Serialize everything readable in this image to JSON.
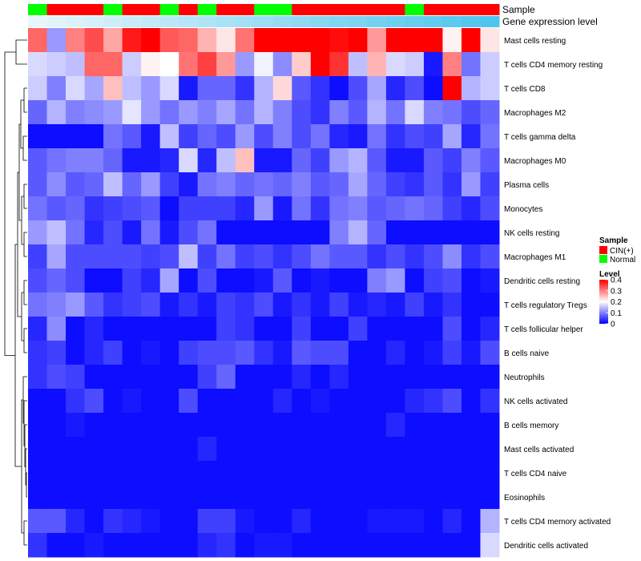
{
  "chart_data": {
    "type": "heatmap",
    "title": "",
    "annotation_tracks": [
      {
        "label": "Sample",
        "values": [
          "Normal",
          "CIN(+)",
          "CIN(+)",
          "CIN(+)",
          "Normal",
          "CIN(+)",
          "CIN(+)",
          "Normal",
          "CIN(+)",
          "Normal",
          "CIN(+)",
          "CIN(+)",
          "Normal",
          "Normal",
          "CIN(+)",
          "CIN(+)",
          "CIN(+)",
          "CIN(+)",
          "CIN(+)",
          "CIN(+)",
          "Normal",
          "CIN(+)",
          "CIN(+)",
          "CIN(+)",
          "CIN(+)"
        ]
      },
      {
        "label": "Gene expression level",
        "values": [
          0.14,
          0.15,
          0.16,
          0.17,
          0.18,
          0.19,
          0.2,
          0.21,
          0.22,
          0.23,
          0.24,
          0.25,
          0.26,
          0.27,
          0.28,
          0.29,
          0.3,
          0.31,
          0.32,
          0.33,
          0.34,
          0.35,
          0.36,
          0.37,
          0.38
        ]
      }
    ],
    "rows": [
      "Mast cells resting",
      "T cells CD4 memory resting",
      "T cells CD8",
      "Macrophages M2",
      "T cells gamma delta",
      "Macrophages M0",
      "Plasma cells",
      "Monocytes",
      "NK cells resting",
      "Macrophages M1",
      "Dendritic cells resting",
      "T cells regulatory  Tregs",
      "T cells follicular helper",
      "B cells naive",
      "Neutrophils",
      "NK cells activated",
      "B cells memory",
      "Mast cells activated",
      "T cells CD4 naive",
      "Eosinophils",
      "T cells CD4 memory activated",
      "Dendritic cells activated"
    ],
    "values": [
      [
        0.32,
        0.12,
        0.3,
        0.34,
        0.27,
        0.38,
        0.4,
        0.33,
        0.32,
        0.26,
        0.22,
        0.31,
        0.4,
        0.4,
        0.4,
        0.4,
        0.39,
        0.4,
        0.28,
        0.4,
        0.4,
        0.4,
        0.21,
        0.4,
        0.22
      ],
      [
        0.17,
        0.16,
        0.15,
        0.32,
        0.32,
        0.16,
        0.21,
        0.2,
        0.31,
        0.35,
        0.28,
        0.12,
        0.19,
        0.11,
        0.24,
        0.4,
        0.36,
        0.15,
        0.26,
        0.17,
        0.16,
        0.02,
        0.3,
        0.09,
        0.16
      ],
      [
        0.16,
        0.1,
        0.17,
        0.13,
        0.25,
        0.15,
        0.12,
        0.17,
        0.02,
        0.08,
        0.08,
        0.04,
        0.14,
        0.23,
        0.07,
        0.04,
        0.01,
        0.06,
        0.13,
        0.03,
        0.06,
        0.01,
        0.4,
        0.14,
        0.16
      ],
      [
        0.08,
        0.14,
        0.1,
        0.11,
        0.12,
        0.18,
        0.12,
        0.09,
        0.12,
        0.1,
        0.13,
        0.09,
        0.14,
        0.1,
        0.06,
        0.04,
        0.1,
        0.07,
        0.14,
        0.09,
        0.17,
        0.1,
        0.09,
        0.06,
        0.08
      ],
      [
        0.01,
        0.01,
        0.01,
        0.01,
        0.09,
        0.07,
        0.02,
        0.15,
        0.05,
        0.08,
        0.06,
        0.12,
        0.06,
        0.1,
        0.06,
        0.09,
        0.03,
        0.02,
        0.09,
        0.04,
        0.06,
        0.05,
        0.13,
        0.03,
        0.09
      ],
      [
        0.07,
        0.09,
        0.1,
        0.1,
        0.08,
        0.02,
        0.02,
        0.03,
        0.17,
        0.03,
        0.15,
        0.25,
        0.02,
        0.02,
        0.08,
        0.05,
        0.12,
        0.14,
        0.07,
        0.02,
        0.02,
        0.07,
        0.05,
        0.1,
        0.07
      ],
      [
        0.07,
        0.11,
        0.07,
        0.08,
        0.15,
        0.08,
        0.12,
        0.05,
        0.02,
        0.09,
        0.1,
        0.08,
        0.09,
        0.08,
        0.1,
        0.07,
        0.08,
        0.13,
        0.08,
        0.05,
        0.04,
        0.07,
        0.04,
        0.12,
        0.05
      ],
      [
        0.09,
        0.07,
        0.08,
        0.04,
        0.05,
        0.06,
        0.07,
        0.01,
        0.05,
        0.05,
        0.05,
        0.03,
        0.12,
        0.02,
        0.09,
        0.04,
        0.09,
        0.1,
        0.07,
        0.08,
        0.09,
        0.08,
        0.05,
        0.03,
        0.06
      ],
      [
        0.12,
        0.15,
        0.09,
        0.03,
        0.06,
        0.02,
        0.09,
        0.02,
        0.06,
        0.09,
        0.01,
        0.01,
        0.01,
        0.01,
        0.01,
        0.01,
        0.1,
        0.14,
        0.08,
        0.01,
        0.01,
        0.01,
        0.01,
        0.01,
        0.01
      ],
      [
        0.05,
        0.13,
        0.06,
        0.06,
        0.06,
        0.06,
        0.05,
        0.06,
        0.15,
        0.05,
        0.09,
        0.05,
        0.06,
        0.04,
        0.06,
        0.09,
        0.07,
        0.07,
        0.04,
        0.06,
        0.04,
        0.06,
        0.11,
        0.04,
        0.06
      ],
      [
        0.06,
        0.08,
        0.06,
        0.01,
        0.01,
        0.05,
        0.03,
        0.13,
        0.01,
        0.06,
        0.01,
        0.01,
        0.02,
        0.07,
        0.01,
        0.02,
        0.01,
        0.01,
        0.1,
        0.12,
        0.01,
        0.05,
        0.06,
        0.01,
        0.02
      ],
      [
        0.09,
        0.1,
        0.12,
        0.07,
        0.04,
        0.05,
        0.06,
        0.02,
        0.04,
        0.02,
        0.05,
        0.04,
        0.06,
        0.02,
        0.04,
        0.02,
        0.05,
        0.02,
        0.03,
        0.02,
        0.05,
        0.02,
        0.04,
        0.01,
        0.01
      ],
      [
        0.03,
        0.11,
        0.01,
        0.03,
        0.01,
        0.01,
        0.01,
        0.01,
        0.01,
        0.01,
        0.05,
        0.04,
        0.01,
        0.01,
        0.05,
        0.01,
        0.01,
        0.05,
        0.01,
        0.01,
        0.01,
        0.01,
        0.06,
        0.01,
        0.03
      ],
      [
        0.04,
        0.05,
        0.01,
        0.03,
        0.05,
        0.01,
        0.02,
        0.01,
        0.05,
        0.06,
        0.06,
        0.07,
        0.04,
        0.02,
        0.07,
        0.06,
        0.06,
        0.01,
        0.01,
        0.03,
        0.01,
        0.02,
        0.05,
        0.02,
        0.06
      ],
      [
        0.04,
        0.06,
        0.05,
        0.01,
        0.01,
        0.01,
        0.01,
        0.01,
        0.01,
        0.05,
        0.08,
        0.01,
        0.01,
        0.01,
        0.03,
        0.01,
        0.03,
        0.01,
        0.01,
        0.01,
        0.01,
        0.01,
        0.01,
        0.01,
        0.01
      ],
      [
        0.01,
        0.01,
        0.04,
        0.06,
        0.01,
        0.02,
        0.01,
        0.01,
        0.06,
        0.01,
        0.01,
        0.01,
        0.01,
        0.03,
        0.01,
        0.02,
        0.01,
        0.01,
        0.01,
        0.01,
        0.03,
        0.04,
        0.06,
        0.01,
        0.04
      ],
      [
        0.01,
        0.01,
        0.02,
        0.01,
        0.01,
        0.01,
        0.01,
        0.01,
        0.01,
        0.01,
        0.01,
        0.01,
        0.01,
        0.01,
        0.01,
        0.01,
        0.01,
        0.01,
        0.01,
        0.03,
        0.01,
        0.01,
        0.01,
        0.01,
        0.01
      ],
      [
        0.01,
        0.01,
        0.01,
        0.01,
        0.01,
        0.01,
        0.01,
        0.01,
        0.01,
        0.03,
        0.01,
        0.01,
        0.01,
        0.01,
        0.01,
        0.01,
        0.01,
        0.01,
        0.01,
        0.01,
        0.01,
        0.01,
        0.01,
        0.01,
        0.01
      ],
      [
        0.01,
        0.01,
        0.01,
        0.01,
        0.01,
        0.01,
        0.01,
        0.01,
        0.01,
        0.01,
        0.01,
        0.01,
        0.01,
        0.01,
        0.01,
        0.01,
        0.01,
        0.01,
        0.01,
        0.01,
        0.01,
        0.01,
        0.01,
        0.01,
        0.01
      ],
      [
        0.01,
        0.01,
        0.01,
        0.01,
        0.01,
        0.01,
        0.01,
        0.01,
        0.01,
        0.01,
        0.01,
        0.01,
        0.01,
        0.01,
        0.01,
        0.01,
        0.01,
        0.01,
        0.01,
        0.01,
        0.01,
        0.01,
        0.01,
        0.01,
        0.01
      ],
      [
        0.07,
        0.07,
        0.03,
        0.01,
        0.04,
        0.03,
        0.02,
        0.01,
        0.01,
        0.05,
        0.05,
        0.02,
        0.01,
        0.01,
        0.03,
        0.01,
        0.01,
        0.01,
        0.02,
        0.02,
        0.02,
        0.01,
        0.03,
        0.01,
        0.14
      ],
      [
        0.04,
        0.01,
        0.01,
        0.02,
        0.01,
        0.01,
        0.01,
        0.01,
        0.01,
        0.03,
        0.04,
        0.01,
        0.02,
        0.02,
        0.01,
        0.01,
        0.01,
        0.01,
        0.01,
        0.01,
        0.01,
        0.01,
        0.01,
        0.01,
        0.17
      ]
    ],
    "color_scale": {
      "low": "#0000ff",
      "mid": "#ffffff",
      "high": "#ff0000",
      "min": 0,
      "mid_value": 0.2,
      "max": 0.4
    },
    "legend": {
      "placement": "right",
      "sample_title": "Sample",
      "sample_items": [
        {
          "label": "CIN(+)",
          "color": "#ff0000"
        },
        {
          "label": "Normal",
          "color": "#00ff00"
        }
      ],
      "level_title": "Level",
      "level_ticks": [
        0.4,
        0.3,
        0.2,
        0.1,
        0
      ],
      "level_tick_labels": [
        "0.4",
        "0.3",
        "0.2",
        "0.1",
        "0"
      ]
    },
    "track_colors": {
      "CIN(+)": "#ff0000",
      "Normal": "#00ff00",
      "level_low": "#e8f6fb",
      "level_high": "#4fc5ee"
    },
    "row_dendrogram": true
  }
}
